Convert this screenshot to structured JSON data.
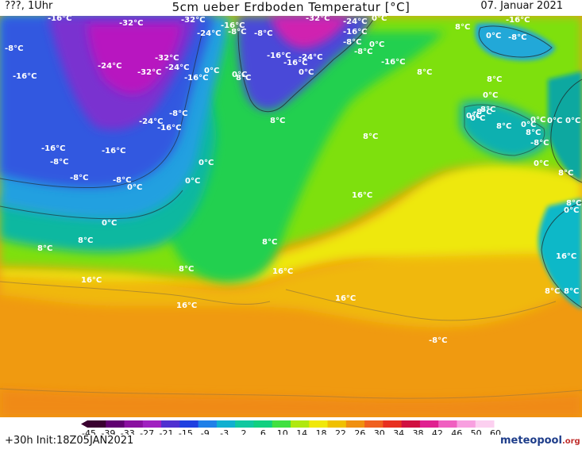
{
  "header": {
    "left": "???, 1Uhr",
    "title": "5cm ueber Erdboden Temperatur [°C]",
    "date": "07. Januar 2021"
  },
  "footer": {
    "forecast": "+30h Init:18Z05JAN2021",
    "logo_main": "meteopool",
    "logo_suffix": ".org"
  },
  "colorbar": {
    "ticks": [
      "-45",
      "-39",
      "-33",
      "-27",
      "-21",
      "-15",
      "-9",
      "-3",
      "2",
      "6",
      "10",
      "14",
      "18",
      "22",
      "26",
      "30",
      "34",
      "38",
      "42",
      "46",
      "50",
      "60"
    ],
    "colors": [
      "#3a0030",
      "#600070",
      "#8a10a0",
      "#a020c0",
      "#5030d0",
      "#2040e0",
      "#2080e8",
      "#10b0d0",
      "#10c8a0",
      "#10d080",
      "#40e040",
      "#b0e810",
      "#f0e808",
      "#f0c000",
      "#f09010",
      "#f06020",
      "#e83020",
      "#d01040",
      "#e02090",
      "#f060c0",
      "#f8a0e0",
      "#fcd0f0"
    ]
  },
  "labels": [
    {
      "id": "l1",
      "text": "-16°C"
    },
    {
      "id": "l2",
      "text": "-8°C"
    },
    {
      "id": "l3",
      "text": "-16°C"
    },
    {
      "id": "l4",
      "text": "-32°C"
    },
    {
      "id": "l5",
      "text": "-32°C"
    },
    {
      "id": "l6",
      "text": "-24°C"
    },
    {
      "id": "l7",
      "text": "-16°C"
    },
    {
      "id": "l8",
      "text": "-8°C"
    },
    {
      "id": "l9",
      "text": "-8°C"
    },
    {
      "id": "l10",
      "text": "-32°C"
    },
    {
      "id": "l11",
      "text": "0°C"
    },
    {
      "id": "l12",
      "text": "-16°C"
    },
    {
      "id": "l13",
      "text": "-8°C"
    },
    {
      "id": "l14",
      "text": "-24°C"
    },
    {
      "id": "l15",
      "text": "-16°C"
    },
    {
      "id": "l16",
      "text": "-8°C"
    },
    {
      "id": "l17",
      "text": "0°C"
    },
    {
      "id": "l18",
      "text": "0°C"
    },
    {
      "id": "l19",
      "text": "8°C"
    },
    {
      "id": "l20",
      "text": "-32°C"
    },
    {
      "id": "l21",
      "text": "-24°C"
    },
    {
      "id": "l22",
      "text": "-32°C"
    },
    {
      "id": "l23",
      "text": "-16°C"
    },
    {
      "id": "l24",
      "text": "-24°C"
    },
    {
      "id": "l25",
      "text": "0°C"
    },
    {
      "id": "l26",
      "text": "0°C"
    },
    {
      "id": "l27",
      "text": "-16°C"
    },
    {
      "id": "l28",
      "text": "-24°C"
    },
    {
      "id": "l29",
      "text": "-16°C"
    },
    {
      "id": "l30",
      "text": "0°C"
    },
    {
      "id": "l31",
      "text": "-8°C"
    },
    {
      "id": "l32",
      "text": "-16°C"
    },
    {
      "id": "l33",
      "text": "-24°C"
    },
    {
      "id": "l34",
      "text": "-16°C"
    },
    {
      "id": "l35",
      "text": "-8°C"
    },
    {
      "id": "l36",
      "text": "8°C"
    },
    {
      "id": "l37",
      "text": "-16°C"
    },
    {
      "id": "l38",
      "text": "-16°C"
    },
    {
      "id": "l39",
      "text": "-8°C"
    },
    {
      "id": "l40",
      "text": "-8°C"
    },
    {
      "id": "l41",
      "text": "-8°C"
    },
    {
      "id": "l42",
      "text": "0°C"
    },
    {
      "id": "l43",
      "text": "0°C"
    },
    {
      "id": "l44",
      "text": "0°C"
    },
    {
      "id": "l45",
      "text": "0°C"
    },
    {
      "id": "l46",
      "text": "8°C"
    },
    {
      "id": "l47",
      "text": "8°C"
    },
    {
      "id": "l48",
      "text": "8°C"
    },
    {
      "id": "l49",
      "text": "8°C"
    },
    {
      "id": "l50",
      "text": "16°C"
    },
    {
      "id": "l51",
      "text": "16°C"
    },
    {
      "id": "l52",
      "text": "16°C"
    },
    {
      "id": "l53",
      "text": "16°C"
    },
    {
      "id": "l54",
      "text": "16°C"
    },
    {
      "id": "l55",
      "text": "-8°C"
    },
    {
      "id": "l56",
      "text": "8°C"
    },
    {
      "id": "l57",
      "text": "8°C"
    },
    {
      "id": "l58",
      "text": "8°C"
    },
    {
      "id": "l59",
      "text": "0°C"
    },
    {
      "id": "l60",
      "text": "0°C"
    },
    {
      "id": "l61",
      "text": "-8°C"
    },
    {
      "id": "l62",
      "text": "8°C"
    },
    {
      "id": "l63",
      "text": "0°C"
    },
    {
      "id": "l64",
      "text": "8°C"
    },
    {
      "id": "l65",
      "text": "0°C"
    },
    {
      "id": "l66",
      "text": "0°C"
    },
    {
      "id": "l67",
      "text": "8°C"
    },
    {
      "id": "l68",
      "text": "0°C"
    },
    {
      "id": "l69",
      "text": "0°C"
    },
    {
      "id": "l70",
      "text": "0°C"
    },
    {
      "id": "l71",
      "text": "8°C"
    },
    {
      "id": "l72",
      "text": "-8°C"
    },
    {
      "id": "l73",
      "text": "0°C"
    },
    {
      "id": "l74",
      "text": "16°C"
    },
    {
      "id": "l75",
      "text": "8°C"
    },
    {
      "id": "l76",
      "text": "8°C"
    },
    {
      "id": "l77",
      "text": "8°C"
    },
    {
      "id": "l78",
      "text": "8°C"
    }
  ]
}
